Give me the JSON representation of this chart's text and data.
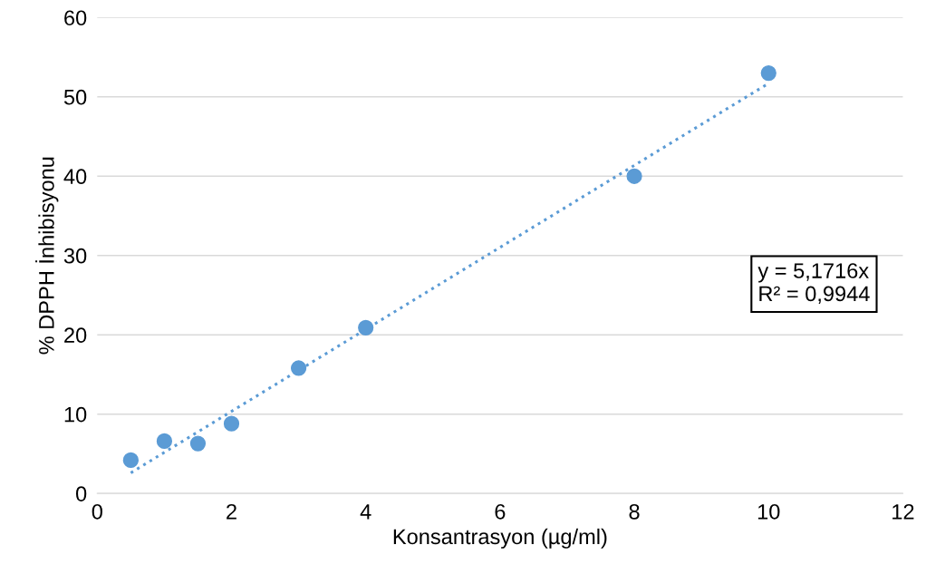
{
  "chart_data": {
    "type": "scatter",
    "xlabel": "Konsantrasyon (µg/ml)",
    "ylabel": "% DPPH İnhibisyonu",
    "xlim": [
      0,
      12
    ],
    "xticks": [
      0,
      2,
      4,
      6,
      8,
      10,
      12
    ],
    "ylim": [
      0,
      60
    ],
    "yticks": [
      0,
      10,
      20,
      30,
      40,
      50,
      60
    ],
    "grid": "y",
    "series": [
      {
        "color": "#5b9bd5",
        "marker": "circle",
        "x": [
          0.5,
          1,
          1.5,
          2,
          3,
          4,
          8,
          10
        ],
        "values": [
          4.2,
          6.6,
          6.3,
          8.8,
          15.8,
          20.9,
          40,
          53
        ]
      },
      {
        "type": "line",
        "color": "#5b9bd5",
        "line_style": "dotted",
        "x": [
          0.5,
          10
        ],
        "values": [
          2.6,
          51.7
        ]
      }
    ],
    "annotations": [
      "y = 5,1716x\nR² = 0,9944"
    ]
  }
}
